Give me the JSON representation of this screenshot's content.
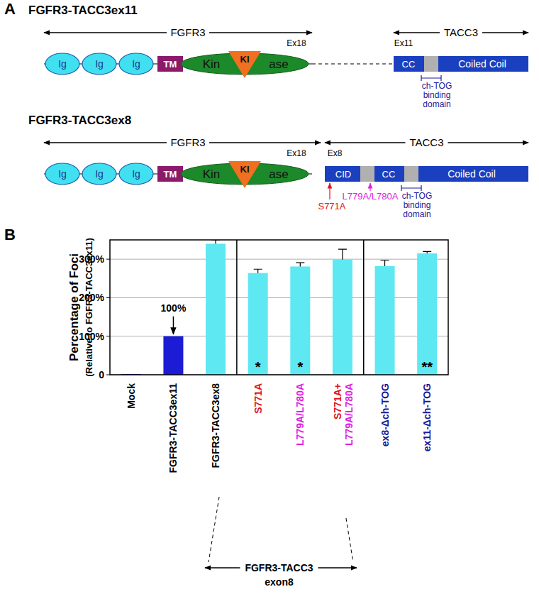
{
  "panel_a": {
    "label": "A",
    "fgfr3_domains": {
      "ig": [
        "Ig",
        "Ig",
        "Ig"
      ],
      "tm": "TM",
      "kinase": [
        "Kin",
        "ase"
      ],
      "kinase_insert": "KI"
    },
    "ch_tog": [
      "ch-TOG",
      "binding",
      "domain"
    ],
    "constructs": [
      {
        "title": "FGFR3-TACC3ex11",
        "fgfr3_label": "FGFR3",
        "tacc3_label": "TACC3",
        "fgfr3_exon": "Ex18",
        "tacc3_exon": "Ex11",
        "tacc3_domains": [
          "CC",
          "Coiled Coil"
        ],
        "mutations": []
      },
      {
        "title": "FGFR3-TACC3ex8",
        "fgfr3_label": "FGFR3",
        "tacc3_label": "TACC3",
        "fgfr3_exon": "Ex18",
        "tacc3_exon": "Ex8",
        "tacc3_domains": [
          "CID",
          "CC",
          "Coiled Coil"
        ],
        "mutations": [
          "S771A",
          "L779A/L780A"
        ]
      }
    ]
  },
  "panel_b": {
    "label": "B"
  },
  "chart_data": {
    "type": "bar",
    "y_label": "Percentage of Foci",
    "y_sublabel": "(Relative to FGFR3-TACC3ex11)",
    "categories": [
      "Mock",
      "FGFR3-TACC3ex11",
      "FGFR3-TACC3ex8",
      "S771A",
      "L779A/L780A",
      "S771A+ L779A/L780A",
      "ex8-Δch-TOG",
      "ex11-Δch-TOG"
    ],
    "values": [
      2,
      100,
      340,
      264,
      281,
      299,
      282,
      315
    ],
    "errors": [
      0,
      0,
      10,
      10,
      10,
      27,
      15,
      5
    ],
    "colors": [
      "#1c1cd4",
      "#1c1cd4",
      "#5ee8f2",
      "#5ee8f2",
      "#5ee8f2",
      "#5ee8f2",
      "#5ee8f2",
      "#5ee8f2"
    ],
    "ylim": [
      0,
      350
    ],
    "yticks": [
      0,
      {
        "value": 100,
        "label": "100%"
      },
      {
        "value": 200,
        "label": "200%"
      },
      {
        "value": 300,
        "label": "300%"
      }
    ],
    "grid": true,
    "annotations": [
      {
        "category": "FGFR3-TACC3ex11",
        "text": "100%"
      }
    ],
    "significance": [
      {
        "category": "S771A",
        "text": "*"
      },
      {
        "category": "L779A/L780A",
        "text": "*"
      },
      {
        "category": "ex11-Δch-TOG",
        "text": "**"
      }
    ],
    "groups": [
      {
        "label": [
          "FGFR3-TACC3",
          "exon8"
        ],
        "categories": [
          "FGFR3-TACC3ex8",
          "S771A",
          "L779A/L780A",
          "S771A+ L779A/L780A"
        ]
      }
    ]
  }
}
